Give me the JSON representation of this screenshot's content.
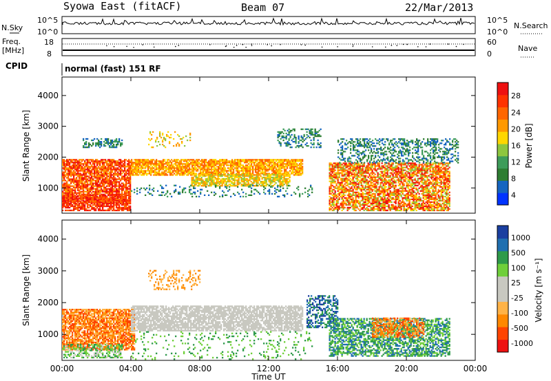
{
  "header": {
    "station": "Syowa East (fitACF)",
    "beam": "Beam 07",
    "date": "22/Mar/2013"
  },
  "top_panels": {
    "nsky_label": "N.Sky",
    "nsearch_label": "N.Search",
    "nsky_ticks": [
      "10^5",
      "10^0"
    ],
    "nsearch_ticks": [
      "10^5",
      "10^0"
    ],
    "freq_label": [
      "Freq.",
      "[MHz]"
    ],
    "freq_ticks": [
      "18",
      "8"
    ],
    "nave_ticks": [
      "60",
      "0"
    ],
    "nave_label": "Nave",
    "cpid_label": "CPID",
    "cpid_text": "normal (fast) 151 RF"
  },
  "chart_data": [
    {
      "type": "heatmap",
      "title": "",
      "xlabel": "",
      "ylabel": "Slant Range [km]",
      "xlim": [
        0,
        24
      ],
      "ylim": [
        180,
        4600
      ],
      "yticks": [
        1000,
        2000,
        3000,
        4000
      ],
      "colorbar_label": "Power [dB]",
      "colorbar_ticks": [
        "28",
        "24",
        "20",
        "16",
        "12",
        "8",
        "4"
      ],
      "colorscale": [
        "#0033ff",
        "#1565c0",
        "#2e7d32",
        "#3e9c5a",
        "#8ec63f",
        "#ffd700",
        "#ff9900",
        "#ff6600",
        "#ff3300",
        "#ee1111"
      ],
      "regions": [
        {
          "t": [
            0.0,
            4.0
          ],
          "r": [
            500,
            1900
          ],
          "c": [
            6,
            9
          ],
          "d": 0.8
        },
        {
          "t": [
            0.0,
            4.0
          ],
          "r": [
            250,
            750
          ],
          "c": [
            7,
            9
          ],
          "d": 0.7
        },
        {
          "t": [
            1.2,
            3.5
          ],
          "r": [
            2300,
            2600
          ],
          "c": [
            1,
            3
          ],
          "d": 0.5
        },
        {
          "t": [
            4.0,
            14.0
          ],
          "r": [
            1400,
            1900
          ],
          "c": [
            5,
            7
          ],
          "d": 0.8
        },
        {
          "t": [
            7.5,
            13.2
          ],
          "r": [
            1050,
            1450
          ],
          "c": [
            4,
            6
          ],
          "d": 0.75
        },
        {
          "t": [
            4.0,
            14.5
          ],
          "r": [
            700,
            1100
          ],
          "c": [
            1,
            3
          ],
          "d": 0.15
        },
        {
          "t": [
            12.5,
            15.0
          ],
          "r": [
            2300,
            2900
          ],
          "c": [
            1,
            3
          ],
          "d": 0.35
        },
        {
          "t": [
            15.5,
            22.5
          ],
          "r": [
            250,
            1800
          ],
          "c": [
            4,
            9
          ],
          "d": 0.7
        },
        {
          "t": [
            16.0,
            23.0
          ],
          "r": [
            1800,
            2600
          ],
          "c": [
            1,
            3
          ],
          "d": 0.35
        },
        {
          "t": [
            5.0,
            7.5
          ],
          "r": [
            2300,
            2800
          ],
          "c": [
            4,
            6
          ],
          "d": 0.2
        }
      ]
    },
    {
      "type": "heatmap",
      "title": "",
      "xlabel": "Time UT",
      "ylabel": "Slant Range [km]",
      "xlim": [
        0,
        24
      ],
      "ylim": [
        180,
        4600
      ],
      "yticks": [
        1000,
        2000,
        3000,
        4000
      ],
      "xticks": [
        "00:00",
        "04:00",
        "08:00",
        "12:00",
        "16:00",
        "20:00",
        "00:00"
      ],
      "colorbar_label": "Velocity [m s⁻¹]",
      "colorbar_ticks": [
        "1000",
        "500",
        "100",
        "25",
        "-25",
        "-100",
        "-500",
        "-1000"
      ],
      "colorscale": [
        "#ee1111",
        "#ff4400",
        "#ff8800",
        "#ffb347",
        "#c8c8c0",
        "#c8c8c0",
        "#6fcf3a",
        "#2e9a4a",
        "#1f6fb0",
        "#1a3fa0"
      ],
      "regions": [
        {
          "t": [
            0.0,
            4.2
          ],
          "r": [
            500,
            1800
          ],
          "c": [
            1,
            3
          ],
          "d": 0.8
        },
        {
          "t": [
            0.0,
            3.5
          ],
          "r": [
            250,
            700
          ],
          "c": [
            5,
            7
          ],
          "d": 0.5
        },
        {
          "t": [
            4.0,
            14.0
          ],
          "r": [
            1100,
            1900
          ],
          "c": [
            4,
            5
          ],
          "d": 0.75
        },
        {
          "t": [
            4.0,
            14.5
          ],
          "r": [
            200,
            1100
          ],
          "c": [
            6,
            7
          ],
          "d": 0.1
        },
        {
          "t": [
            14.2,
            16.0
          ],
          "r": [
            1200,
            2200
          ],
          "c": [
            7,
            9
          ],
          "d": 0.5
        },
        {
          "t": [
            15.5,
            22.5
          ],
          "r": [
            300,
            1500
          ],
          "c": [
            6,
            8
          ],
          "d": 0.6
        },
        {
          "t": [
            18.0,
            21.0
          ],
          "r": [
            900,
            1500
          ],
          "c": [
            1,
            3
          ],
          "d": 0.55
        },
        {
          "t": [
            5.0,
            8.0
          ],
          "r": [
            2400,
            3000
          ],
          "c": [
            2,
            3
          ],
          "d": 0.25
        }
      ]
    }
  ]
}
